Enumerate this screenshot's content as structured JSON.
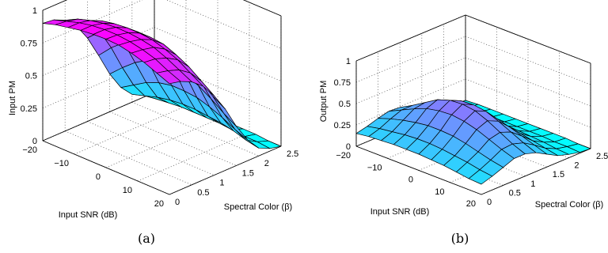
{
  "chart_data": [
    {
      "type": "surface",
      "zlabel": "Input PM",
      "xlabel": "Input SNR (dB)",
      "ylabel": "Spectral Color (β)",
      "caption": "(a)",
      "xlim": [
        -20,
        20
      ],
      "ylim": [
        0,
        2.5
      ],
      "zlim": [
        0,
        1
      ],
      "x_ticks": [
        "-20",
        "-10",
        "0",
        "10",
        "20"
      ],
      "y_ticks": [
        "0",
        "0.5",
        "1",
        "1.5",
        "2",
        "2.5"
      ],
      "z_ticks": [
        "0",
        "0.25",
        "0.5",
        "0.75",
        "1"
      ],
      "grid": true,
      "colormap": [
        "#00ffff",
        "#ff00ff"
      ],
      "x": [
        -20,
        -16,
        -12,
        -8,
        -4,
        0,
        4,
        8,
        12,
        16,
        20
      ],
      "y": [
        0,
        0.25,
        0.5,
        0.75,
        1.0,
        1.25,
        1.5,
        1.75,
        2.0,
        2.25,
        2.5
      ],
      "z": [
        [
          0.9,
          0.93,
          0.95,
          0.97,
          0.98,
          0.985,
          0.98,
          0.96,
          0.93,
          0.89,
          0.85
        ],
        [
          0.89,
          0.92,
          0.95,
          0.97,
          0.98,
          0.98,
          0.97,
          0.95,
          0.92,
          0.87,
          0.83
        ],
        [
          0.85,
          0.9,
          0.93,
          0.95,
          0.96,
          0.96,
          0.95,
          0.93,
          0.89,
          0.84,
          0.79
        ],
        [
          0.77,
          0.84,
          0.89,
          0.91,
          0.92,
          0.92,
          0.91,
          0.88,
          0.84,
          0.78,
          0.72
        ],
        [
          0.64,
          0.73,
          0.8,
          0.84,
          0.85,
          0.85,
          0.84,
          0.8,
          0.75,
          0.68,
          0.61
        ],
        [
          0.47,
          0.57,
          0.65,
          0.71,
          0.73,
          0.73,
          0.72,
          0.67,
          0.61,
          0.53,
          0.47
        ],
        [
          0.29,
          0.38,
          0.46,
          0.52,
          0.55,
          0.55,
          0.53,
          0.49,
          0.43,
          0.36,
          0.3
        ],
        [
          0.15,
          0.21,
          0.27,
          0.31,
          0.33,
          0.33,
          0.32,
          0.29,
          0.25,
          0.2,
          0.16
        ],
        [
          0.06,
          0.09,
          0.12,
          0.14,
          0.15,
          0.15,
          0.14,
          0.13,
          0.11,
          0.08,
          0.06
        ],
        [
          0.02,
          0.03,
          0.04,
          0.05,
          0.05,
          0.05,
          0.05,
          0.04,
          0.03,
          0.03,
          0.02
        ],
        [
          0.0,
          0.01,
          0.01,
          0.01,
          0.01,
          0.01,
          0.01,
          0.01,
          0.01,
          0.0,
          0.0
        ]
      ]
    },
    {
      "type": "surface",
      "zlabel": "Output PM",
      "xlabel": "Input SNR (dB)",
      "ylabel": "Spectral Color (β)",
      "caption": "(b)",
      "xlim": [
        -20,
        20
      ],
      "ylim": [
        0,
        2.5
      ],
      "zlim": [
        0,
        1
      ],
      "x_ticks": [
        "-20",
        "-10",
        "0",
        "10",
        "20"
      ],
      "y_ticks": [
        "0",
        "0.5",
        "1",
        "1.5",
        "2",
        "2.5"
      ],
      "z_ticks": [
        "0",
        "0.25",
        "0.5",
        "0.75",
        "1"
      ],
      "grid": true,
      "colormap": [
        "#00ffff",
        "#ff00ff"
      ],
      "x": [
        -20,
        -16,
        -12,
        -8,
        -4,
        0,
        4,
        8,
        12,
        16,
        20
      ],
      "y": [
        0,
        0.25,
        0.5,
        0.75,
        1.0,
        1.25,
        1.5,
        1.75,
        2.0,
        2.25,
        2.5
      ],
      "z": [
        [
          0.15,
          0.17,
          0.18,
          0.19,
          0.19,
          0.19,
          0.18,
          0.17,
          0.15,
          0.13,
          0.12
        ],
        [
          0.18,
          0.21,
          0.23,
          0.25,
          0.26,
          0.26,
          0.25,
          0.23,
          0.21,
          0.18,
          0.16
        ],
        [
          0.22,
          0.27,
          0.31,
          0.34,
          0.36,
          0.36,
          0.35,
          0.32,
          0.28,
          0.24,
          0.21
        ],
        [
          0.25,
          0.32,
          0.39,
          0.45,
          0.48,
          0.49,
          0.47,
          0.43,
          0.37,
          0.31,
          0.26
        ],
        [
          0.24,
          0.32,
          0.41,
          0.5,
          0.55,
          0.56,
          0.54,
          0.48,
          0.4,
          0.32,
          0.26
        ],
        [
          0.2,
          0.28,
          0.36,
          0.44,
          0.49,
          0.5,
          0.48,
          0.42,
          0.35,
          0.28,
          0.22
        ],
        [
          0.14,
          0.2,
          0.26,
          0.31,
          0.35,
          0.36,
          0.34,
          0.3,
          0.25,
          0.2,
          0.15
        ],
        [
          0.08,
          0.12,
          0.15,
          0.18,
          0.2,
          0.21,
          0.2,
          0.17,
          0.14,
          0.11,
          0.08
        ],
        [
          0.04,
          0.06,
          0.07,
          0.08,
          0.09,
          0.09,
          0.09,
          0.08,
          0.07,
          0.05,
          0.04
        ],
        [
          0.01,
          0.02,
          0.03,
          0.03,
          0.03,
          0.03,
          0.03,
          0.03,
          0.02,
          0.02,
          0.01
        ],
        [
          0.0,
          0.01,
          0.01,
          0.01,
          0.01,
          0.01,
          0.01,
          0.01,
          0.01,
          0.0,
          0.0
        ]
      ]
    }
  ]
}
